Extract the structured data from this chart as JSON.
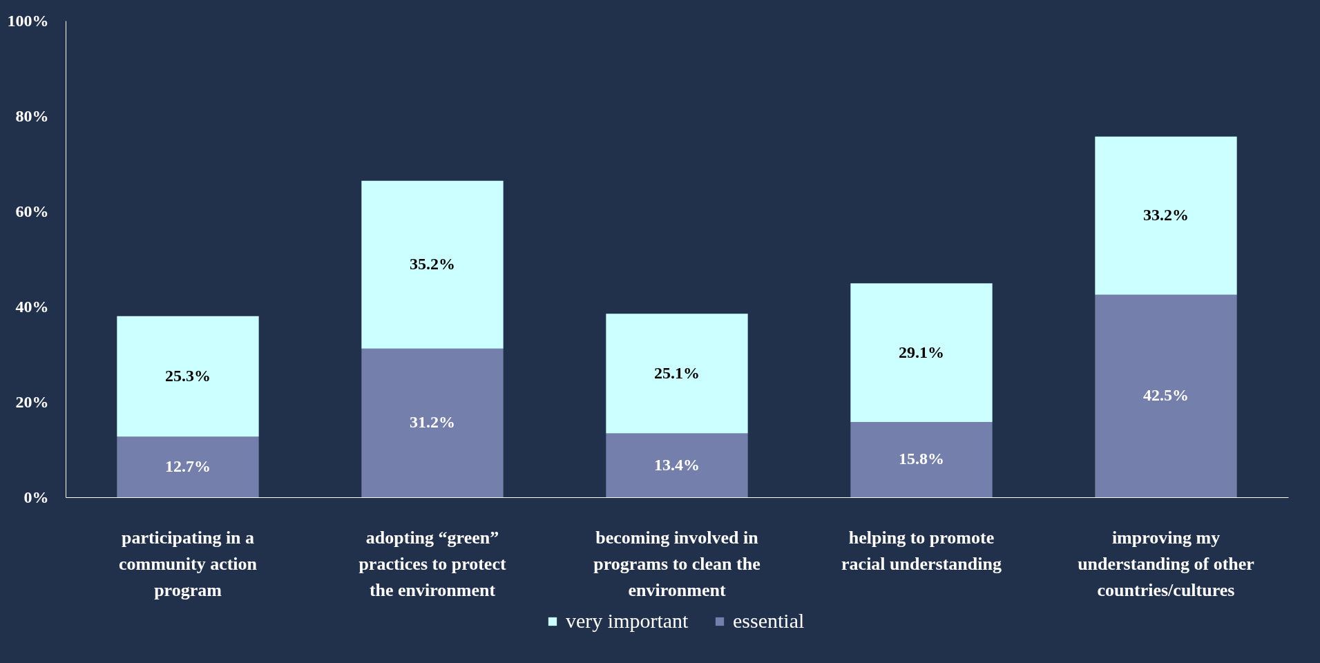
{
  "chart_data": {
    "type": "bar",
    "stacked": true,
    "categories": [
      "participating in a community action program",
      "adopting “green” practices to protect the environment",
      "becoming involved in programs to clean the environment",
      "helping to promote racial understanding",
      "improving my understanding of other countries/cultures"
    ],
    "series": [
      {
        "name": "essential",
        "color": "#7480ab",
        "values": [
          12.7,
          31.2,
          13.4,
          15.8,
          42.5
        ],
        "value_labels": [
          "12.7%",
          "31.2%",
          "13.4%",
          "15.8%",
          "42.5%"
        ]
      },
      {
        "name": "very important",
        "color": "#ccffff",
        "values": [
          25.3,
          35.2,
          25.1,
          29.1,
          33.2
        ],
        "value_labels": [
          "25.3%",
          "35.2%",
          "25.1%",
          "29.1%",
          "33.2%"
        ]
      }
    ],
    "ylim": [
      0,
      100
    ],
    "yticks": [
      {
        "value": 0,
        "label": "0%"
      },
      {
        "value": 20,
        "label": "20%"
      },
      {
        "value": 40,
        "label": "40%"
      },
      {
        "value": 60,
        "label": "60%"
      },
      {
        "value": 80,
        "label": "80%"
      },
      {
        "value": 100,
        "label": "100%"
      }
    ],
    "grid": false,
    "legend": "bottom"
  }
}
